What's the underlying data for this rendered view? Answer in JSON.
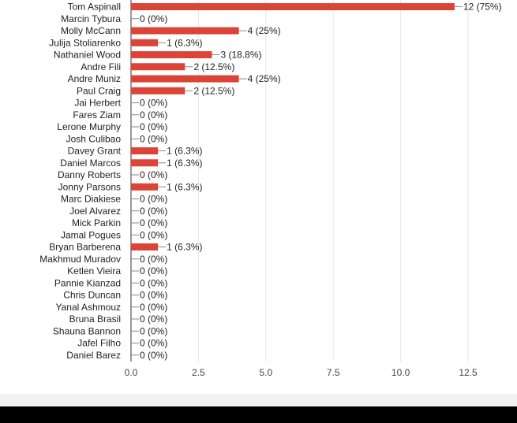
{
  "chart_data": {
    "type": "bar",
    "orientation": "horizontal",
    "categories": [
      "Tom Aspinall",
      "Marcin Tybura",
      "Molly McCann",
      "Julija Stoliarenko",
      "Nathaniel Wood",
      "Andre Fili",
      "Andre Muniz",
      "Paul Craig",
      "Jai Herbert",
      "Fares Ziam",
      "Lerone Murphy",
      "Josh Culibao",
      "Davey Grant",
      "Daniel Marcos",
      "Danny Roberts",
      "Jonny Parsons",
      "Marc Diakiese",
      "Joel Alvarez",
      "Mick Parkin",
      "Jamal Pogues",
      "Bryan Barberena",
      "Makhmud Muradov",
      "Ketlen Vieira",
      "Pannie Kianzad",
      "Chris Duncan",
      "Yanal Ashmouz",
      "Bruna Brasil",
      "Shauna Bannon",
      "Jafel Filho",
      "Daniel Barez"
    ],
    "values": [
      12,
      0,
      4,
      1,
      3,
      2,
      4,
      2,
      0,
      0,
      0,
      0,
      1,
      1,
      0,
      1,
      0,
      0,
      0,
      0,
      1,
      0,
      0,
      0,
      0,
      0,
      0,
      0,
      0,
      0
    ],
    "value_labels": [
      "12 (75%)",
      "0 (0%)",
      "4 (25%)",
      "1 (6.3%)",
      "3 (18.8%)",
      "2 (12.5%)",
      "4 (25%)",
      "2 (12.5%)",
      "0 (0%)",
      "0 (0%)",
      "0 (0%)",
      "0 (0%)",
      "1 (6.3%)",
      "1 (6.3%)",
      "0 (0%)",
      "1 (6.3%)",
      "0 (0%)",
      "0 (0%)",
      "0 (0%)",
      "0 (0%)",
      "1 (6.3%)",
      "0 (0%)",
      "0 (0%)",
      "0 (0%)",
      "0 (0%)",
      "0 (0%)",
      "0 (0%)",
      "0 (0%)",
      "0 (0%)",
      "0 (0%)"
    ],
    "xticks": [
      "0.0",
      "2.5",
      "5.0",
      "7.5",
      "10.0",
      "12.5"
    ],
    "xlim": [
      0,
      12.5
    ],
    "grid": true,
    "bar_color": "#db4437",
    "title": "",
    "xlabel": "",
    "ylabel": ""
  }
}
